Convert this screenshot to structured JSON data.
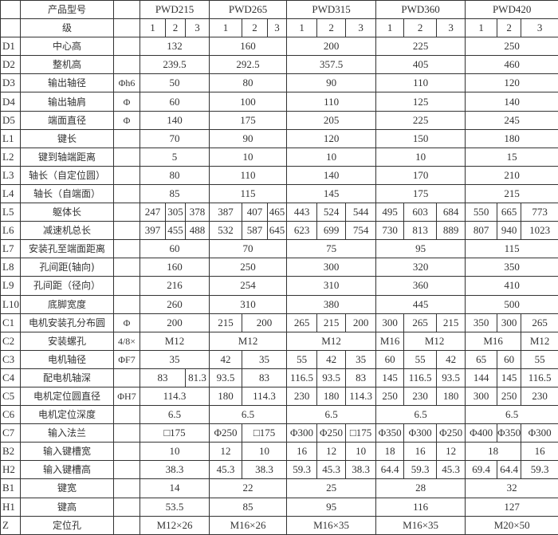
{
  "header": {
    "label_model": "产品型号",
    "label_stage": "级",
    "models": [
      "PWD215",
      "PWD265",
      "PWD315",
      "PWD360",
      "PWD420"
    ],
    "stages": [
      "1",
      "2",
      "3"
    ]
  },
  "rows": [
    {
      "code": "D1",
      "name": "中心高",
      "sym": "",
      "cells": [
        [
          "132",
          3
        ],
        [
          "160",
          3
        ],
        [
          "200",
          3
        ],
        [
          "225",
          3
        ],
        [
          "250",
          3
        ]
      ]
    },
    {
      "code": "D2",
      "name": "整机高",
      "sym": "",
      "cells": [
        [
          "239.5",
          3
        ],
        [
          "292.5",
          3
        ],
        [
          "357.5",
          3
        ],
        [
          "405",
          3
        ],
        [
          "460",
          3
        ]
      ]
    },
    {
      "code": "D3",
      "name": "输出轴径",
      "sym": "Φh6",
      "cells": [
        [
          "50",
          3
        ],
        [
          "80",
          3
        ],
        [
          "90",
          3
        ],
        [
          "110",
          3
        ],
        [
          "120",
          3
        ]
      ]
    },
    {
      "code": "D4",
      "name": "输出轴肩",
      "sym": "Φ",
      "cells": [
        [
          "60",
          3
        ],
        [
          "100",
          3
        ],
        [
          "110",
          3
        ],
        [
          "125",
          3
        ],
        [
          "140",
          3
        ]
      ]
    },
    {
      "code": "D5",
      "name": "端面直径",
      "sym": "Φ",
      "cells": [
        [
          "140",
          3
        ],
        [
          "175",
          3
        ],
        [
          "205",
          3
        ],
        [
          "225",
          3
        ],
        [
          "245",
          3
        ]
      ]
    },
    {
      "code": "L1",
      "name": "键长",
      "sym": "",
      "cells": [
        [
          "70",
          3
        ],
        [
          "90",
          3
        ],
        [
          "120",
          3
        ],
        [
          "150",
          3
        ],
        [
          "180",
          3
        ]
      ]
    },
    {
      "code": "L2",
      "name": "键到轴端距离",
      "sym": "",
      "cells": [
        [
          "5",
          3
        ],
        [
          "10",
          3
        ],
        [
          "10",
          3
        ],
        [
          "10",
          3
        ],
        [
          "15",
          3
        ]
      ]
    },
    {
      "code": "L3",
      "name": "轴长（自定位圆）",
      "sym": "",
      "cells": [
        [
          "80",
          3
        ],
        [
          "110",
          3
        ],
        [
          "140",
          3
        ],
        [
          "170",
          3
        ],
        [
          "210",
          3
        ]
      ]
    },
    {
      "code": "L4",
      "name": "轴长（自端面）",
      "sym": "",
      "cells": [
        [
          "85",
          3
        ],
        [
          "115",
          3
        ],
        [
          "145",
          3
        ],
        [
          "175",
          3
        ],
        [
          "215",
          3
        ]
      ]
    },
    {
      "code": "L5",
      "name": "躯体长",
      "sym": "",
      "cells": [
        [
          "247",
          1
        ],
        [
          "305",
          1
        ],
        [
          "378",
          1
        ],
        [
          "387",
          1
        ],
        [
          "407",
          1
        ],
        [
          "465",
          1
        ],
        [
          "443",
          1
        ],
        [
          "524",
          1
        ],
        [
          "544",
          1
        ],
        [
          "495",
          1
        ],
        [
          "603",
          1
        ],
        [
          "684",
          1
        ],
        [
          "550",
          1
        ],
        [
          "665",
          1
        ],
        [
          "773",
          1
        ]
      ]
    },
    {
      "code": "L6",
      "name": "减速机总长",
      "sym": "",
      "cells": [
        [
          "397",
          1
        ],
        [
          "455",
          1
        ],
        [
          "488",
          1
        ],
        [
          "532",
          1
        ],
        [
          "587",
          1
        ],
        [
          "645",
          1
        ],
        [
          "623",
          1
        ],
        [
          "699",
          1
        ],
        [
          "754",
          1
        ],
        [
          "730",
          1
        ],
        [
          "813",
          1
        ],
        [
          "889",
          1
        ],
        [
          "807",
          1
        ],
        [
          "940",
          1
        ],
        [
          "1023",
          1
        ]
      ]
    },
    {
      "code": "L7",
      "name": "安装孔至端面距离",
      "sym": "",
      "cells": [
        [
          "60",
          3
        ],
        [
          "70",
          3
        ],
        [
          "75",
          3
        ],
        [
          "95",
          3
        ],
        [
          "115",
          3
        ]
      ]
    },
    {
      "code": "L8",
      "name": "孔间距(轴向)",
      "sym": "",
      "cells": [
        [
          "160",
          3
        ],
        [
          "250",
          3
        ],
        [
          "300",
          3
        ],
        [
          "320",
          3
        ],
        [
          "350",
          3
        ]
      ]
    },
    {
      "code": "L9",
      "name": "孔间距（径向）",
      "sym": "",
      "cells": [
        [
          "216",
          3
        ],
        [
          "254",
          3
        ],
        [
          "310",
          3
        ],
        [
          "360",
          3
        ],
        [
          "410",
          3
        ]
      ]
    },
    {
      "code": "L10",
      "name": "底脚宽度",
      "sym": "",
      "cells": [
        [
          "260",
          3
        ],
        [
          "310",
          3
        ],
        [
          "380",
          3
        ],
        [
          "445",
          3
        ],
        [
          "500",
          3
        ]
      ]
    },
    {
      "code": "C1",
      "name": "电机安装孔分布圆",
      "sym": "Φ",
      "cells": [
        [
          "200",
          3
        ],
        [
          "215",
          1
        ],
        [
          "200",
          2
        ],
        [
          "265",
          1
        ],
        [
          "215",
          1
        ],
        [
          "200",
          1
        ],
        [
          "300",
          1
        ],
        [
          "265",
          1
        ],
        [
          "215",
          1
        ],
        [
          "350",
          1
        ],
        [
          "300",
          1
        ],
        [
          "265",
          1
        ]
      ]
    },
    {
      "code": "C2",
      "name": "安装螺孔",
      "sym": "4/8×",
      "cells": [
        [
          "M12",
          3
        ],
        [
          "M12",
          3
        ],
        [
          "M12",
          3
        ],
        [
          "M16",
          1
        ],
        [
          "M12",
          2
        ],
        [
          "M16",
          2
        ],
        [
          "M12",
          1
        ]
      ]
    },
    {
      "code": "C3",
      "name": "电机轴径",
      "sym": "ΦF7",
      "cells": [
        [
          "35",
          3
        ],
        [
          "42",
          1
        ],
        [
          "35",
          2
        ],
        [
          "55",
          1
        ],
        [
          "42",
          1
        ],
        [
          "35",
          1
        ],
        [
          "60",
          1
        ],
        [
          "55",
          1
        ],
        [
          "42",
          1
        ],
        [
          "65",
          1
        ],
        [
          "60",
          1
        ],
        [
          "55",
          1
        ]
      ]
    },
    {
      "code": "C4",
      "name": "配电机轴深",
      "sym": "",
      "cells": [
        [
          "83",
          2
        ],
        [
          "81.3",
          1
        ],
        [
          "93.5",
          1
        ],
        [
          "83",
          2
        ],
        [
          "116.5",
          1
        ],
        [
          "93.5",
          1
        ],
        [
          "83",
          1
        ],
        [
          "145",
          1
        ],
        [
          "116.5",
          1
        ],
        [
          "93.5",
          1
        ],
        [
          "144",
          1
        ],
        [
          "145",
          1
        ],
        [
          "116.5",
          1
        ]
      ]
    },
    {
      "code": "C5",
      "name": "电机定位圆直径",
      "sym": "ΦH7",
      "cells": [
        [
          "114.3",
          3
        ],
        [
          "180",
          1
        ],
        [
          "114.3",
          2
        ],
        [
          "230",
          1
        ],
        [
          "180",
          1
        ],
        [
          "114.3",
          1
        ],
        [
          "250",
          1
        ],
        [
          "230",
          1
        ],
        [
          "180",
          1
        ],
        [
          "300",
          1
        ],
        [
          "250",
          1
        ],
        [
          "230",
          1
        ]
      ]
    },
    {
      "code": "C6",
      "name": "电机定位深度",
      "sym": "",
      "cells": [
        [
          "6.5",
          3
        ],
        [
          "6.5",
          3
        ],
        [
          "6.5",
          3
        ],
        [
          "6.5",
          3
        ],
        [
          "6.5",
          3
        ]
      ]
    },
    {
      "code": "C7",
      "name": "输入法兰",
      "sym": "",
      "cells": [
        [
          "□175",
          3
        ],
        [
          "Φ250",
          1
        ],
        [
          "□175",
          2
        ],
        [
          "Φ300",
          1
        ],
        [
          "Φ250",
          1
        ],
        [
          "□175",
          1
        ],
        [
          "Φ350",
          1
        ],
        [
          "Φ300",
          1
        ],
        [
          "Φ250",
          1
        ],
        [
          "Φ400",
          1
        ],
        [
          "Φ350",
          1
        ],
        [
          "Φ300",
          1
        ]
      ]
    },
    {
      "code": "B2",
      "name": "输入键槽宽",
      "sym": "",
      "cells": [
        [
          "10",
          3
        ],
        [
          "12",
          1
        ],
        [
          "10",
          2
        ],
        [
          "16",
          1
        ],
        [
          "12",
          1
        ],
        [
          "10",
          1
        ],
        [
          "18",
          1
        ],
        [
          "16",
          1
        ],
        [
          "12",
          1
        ],
        [
          "18",
          2
        ],
        [
          "16",
          1
        ]
      ]
    },
    {
      "code": "H2",
      "name": "输入键槽高",
      "sym": "",
      "cells": [
        [
          "38.3",
          3
        ],
        [
          "45.3",
          1
        ],
        [
          "38.3",
          2
        ],
        [
          "59.3",
          1
        ],
        [
          "45.3",
          1
        ],
        [
          "38.3",
          1
        ],
        [
          "64.4",
          1
        ],
        [
          "59.3",
          1
        ],
        [
          "45.3",
          1
        ],
        [
          "69.4",
          1
        ],
        [
          "64.4",
          1
        ],
        [
          "59.3",
          1
        ]
      ]
    },
    {
      "code": "B1",
      "name": "键宽",
      "sym": "",
      "cells": [
        [
          "14",
          3
        ],
        [
          "22",
          3
        ],
        [
          "25",
          3
        ],
        [
          "28",
          3
        ],
        [
          "32",
          3
        ]
      ]
    },
    {
      "code": "H1",
      "name": "键高",
      "sym": "",
      "cells": [
        [
          "53.5",
          3
        ],
        [
          "85",
          3
        ],
        [
          "95",
          3
        ],
        [
          "116",
          3
        ],
        [
          "127",
          3
        ]
      ]
    },
    {
      "code": "Z",
      "name": "定位孔",
      "sym": "",
      "cells": [
        [
          "M12×26",
          3
        ],
        [
          "M16×26",
          3
        ],
        [
          "M16×35",
          3
        ],
        [
          "M16×35",
          3
        ],
        [
          "M20×50",
          3
        ]
      ]
    }
  ]
}
